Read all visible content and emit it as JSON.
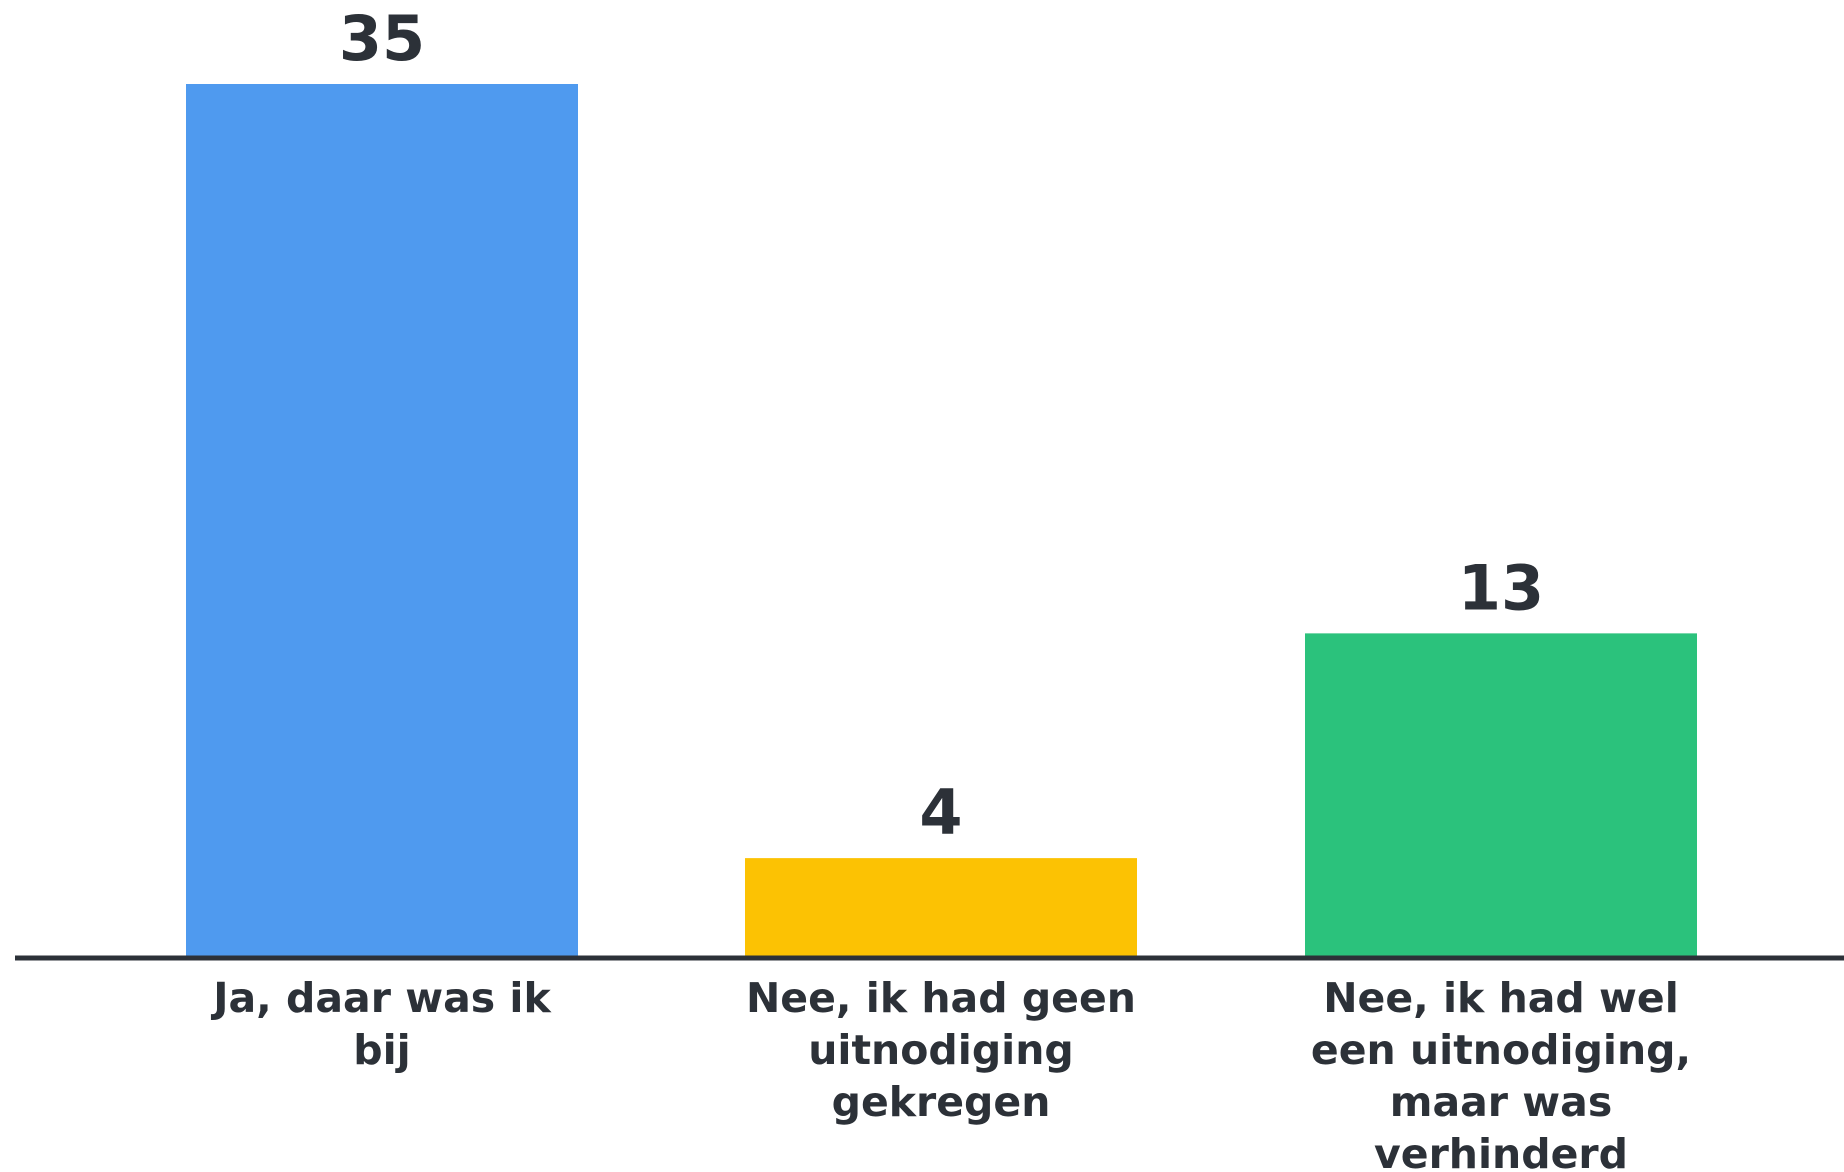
{
  "chart_data": {
    "type": "bar",
    "categories": [
      [
        "Ja, daar was ik",
        "bij"
      ],
      [
        "Nee, ik had geen",
        "uitnodiging",
        "gekregen"
      ],
      [
        "Nee, ik had wel",
        "een uitnodiging,",
        "maar was",
        "verhinderd"
      ]
    ],
    "values": [
      35,
      4,
      13
    ],
    "value_labels": [
      "35",
      "4",
      "13"
    ],
    "colors": [
      "#4f9aef",
      "#fcc203",
      "#2bc27c"
    ],
    "axis_color": "#2c3138",
    "label_color": "#2c3138",
    "ylim": [
      0,
      35
    ],
    "grid": false,
    "legend": false
  }
}
